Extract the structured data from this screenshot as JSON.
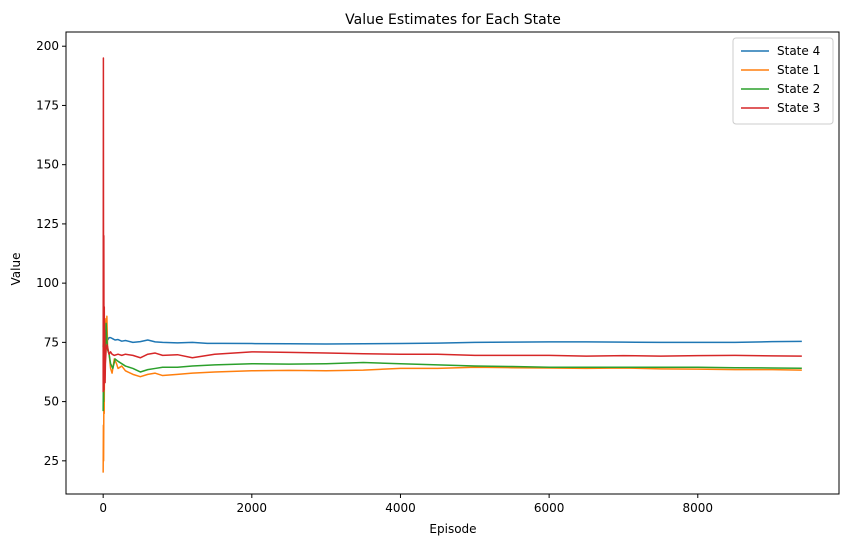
{
  "chart_data": {
    "type": "line",
    "title": "Value Estimates for Each State",
    "xlabel": "Episode",
    "ylabel": "Value",
    "xlim": [
      -500,
      9900
    ],
    "ylim": [
      11,
      206
    ],
    "xticks": [
      0,
      2000,
      4000,
      6000,
      8000
    ],
    "yticks": [
      25,
      50,
      75,
      100,
      125,
      150,
      175,
      200
    ],
    "grid": false,
    "legend_position": "top-right",
    "series": [
      {
        "name": "State 4",
        "color": "#1f77b4",
        "x": [
          0,
          5,
          10,
          15,
          20,
          30,
          40,
          60,
          80,
          100,
          130,
          160,
          200,
          250,
          300,
          400,
          500,
          600,
          700,
          800,
          1000,
          1200,
          1400,
          1600,
          2000,
          2500,
          3000,
          3500,
          4000,
          4500,
          5000,
          5500,
          6000,
          6500,
          7000,
          7500,
          8000,
          8500,
          9000,
          9400
        ],
        "values": [
          73,
          80,
          69,
          76,
          72,
          75,
          78,
          76,
          77,
          77,
          76.5,
          76,
          76.2,
          75.5,
          75.8,
          75,
          75.3,
          76,
          75.2,
          75,
          74.8,
          75,
          74.6,
          74.6,
          74.5,
          74.4,
          74.3,
          74.4,
          74.5,
          74.7,
          75,
          75.1,
          75.2,
          75.2,
          75.1,
          75,
          75,
          75,
          75.3,
          75.4
        ]
      },
      {
        "name": "State 1",
        "color": "#ff7f0e",
        "x": [
          0,
          3,
          6,
          10,
          14,
          18,
          22,
          26,
          30,
          40,
          50,
          60,
          80,
          100,
          120,
          150,
          180,
          200,
          250,
          300,
          400,
          500,
          600,
          700,
          800,
          1000,
          1200,
          1500,
          2000,
          2500,
          3000,
          3500,
          4000,
          4500,
          5000,
          5500,
          6000,
          6500,
          7000,
          7500,
          8000,
          8500,
          9000,
          9400
        ],
        "values": [
          20,
          40,
          25,
          55,
          45,
          70,
          60,
          85,
          72,
          80,
          86,
          72,
          70,
          64,
          62,
          68,
          66,
          64,
          65,
          63,
          61.5,
          60.5,
          61.5,
          62,
          61,
          61.5,
          62,
          62.5,
          63,
          63.2,
          63,
          63.3,
          64,
          64,
          64.5,
          64.3,
          64.2,
          64,
          64.2,
          63.8,
          63.7,
          63.5,
          63.5,
          63.3
        ]
      },
      {
        "name": "State 2",
        "color": "#2ca02c",
        "x": [
          0,
          3,
          6,
          10,
          14,
          18,
          22,
          26,
          30,
          40,
          50,
          60,
          80,
          100,
          130,
          160,
          200,
          250,
          300,
          400,
          500,
          600,
          700,
          800,
          1000,
          1200,
          1500,
          2000,
          2500,
          3000,
          3500,
          4000,
          4500,
          5000,
          5500,
          6000,
          6500,
          7000,
          7500,
          8000,
          8500,
          9000,
          9400
        ],
        "values": [
          46,
          60,
          50,
          66,
          58,
          70,
          64,
          78,
          72,
          83,
          76,
          72,
          70,
          66,
          64,
          68,
          67,
          66,
          65,
          64,
          62.5,
          63.5,
          64,
          64.5,
          64.5,
          65,
          65.5,
          66,
          65.8,
          66,
          66.5,
          66,
          65.5,
          65,
          64.8,
          64.5,
          64.5,
          64.5,
          64.5,
          64.5,
          64.3,
          64.2,
          64.1
        ]
      },
      {
        "name": "State 3",
        "color": "#d62728",
        "x": [
          0,
          3,
          6,
          9,
          12,
          15,
          18,
          22,
          26,
          30,
          40,
          50,
          60,
          80,
          100,
          120,
          150,
          200,
          250,
          300,
          400,
          500,
          600,
          700,
          800,
          1000,
          1200,
          1500,
          2000,
          2500,
          3000,
          3500,
          4000,
          4500,
          5000,
          5500,
          6000,
          6500,
          7000,
          7500,
          8000,
          8500,
          9000,
          9400
        ],
        "values": [
          54,
          195,
          60,
          120,
          55,
          90,
          64,
          80,
          58,
          66,
          72,
          74,
          73,
          70,
          71,
          70,
          69.5,
          70,
          69.5,
          70,
          69.5,
          68.5,
          70,
          70.5,
          69.5,
          69.8,
          68.5,
          70,
          71,
          70.8,
          70.5,
          70.2,
          70,
          70,
          69.5,
          69.5,
          69.5,
          69.2,
          69.4,
          69.2,
          69.4,
          69.5,
          69.3,
          69.2
        ]
      }
    ]
  }
}
